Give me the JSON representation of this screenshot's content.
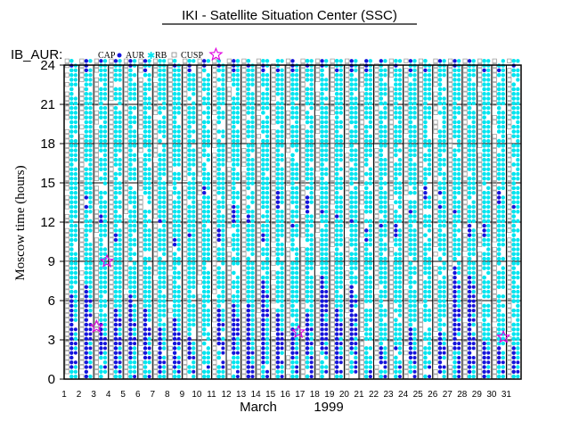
{
  "chart_data": {
    "type": "scatter",
    "title": "IKI - Satellite Situation Center (SSC)",
    "dataset_label": "IB_AUR:",
    "legend": [
      {
        "label": "CAP",
        "marker": "none"
      },
      {
        "label": "AUR",
        "marker": "dot",
        "color": "#1414dc"
      },
      {
        "label": "RB",
        "marker": "star",
        "color": "#00e5f0"
      },
      {
        "label": "CUSP",
        "marker": "square",
        "color": "#a0a0a0"
      }
    ],
    "legend_extra_marker": {
      "marker": "open-star",
      "color": "#e000e0"
    },
    "x_tick_labels": [
      "1",
      "2",
      "3",
      "4",
      "5",
      "6",
      "7",
      "8",
      "9",
      "10",
      "11",
      "12",
      "13",
      "14",
      "15",
      "16",
      "17",
      "18",
      "19",
      "20",
      "21",
      "22",
      "23",
      "24",
      "25",
      "26",
      "27",
      "28",
      "29",
      "30",
      "31"
    ],
    "xlabel_month": "March",
    "xlabel_year": "1999",
    "ylabel": "Moscow time (hours)",
    "y_ticks": [
      0,
      3,
      6,
      9,
      12,
      15,
      18,
      21,
      24
    ],
    "xlim": [
      1,
      32
    ],
    "ylim": [
      0,
      24
    ],
    "grid": true,
    "colors": {
      "aur": "#1414dc",
      "rb": "#00e5f0",
      "cusp": "#a0a0a0",
      "marker": "#e000e0"
    },
    "marker_events": [
      {
        "day": 3.2,
        "hour": 4.0
      },
      {
        "day": 3.9,
        "hour": 9.0
      },
      {
        "day": 11.3,
        "hour": 24.8
      },
      {
        "day": 16.9,
        "hour": 3.6
      },
      {
        "day": 30.8,
        "hour": 3.2
      }
    ]
  }
}
